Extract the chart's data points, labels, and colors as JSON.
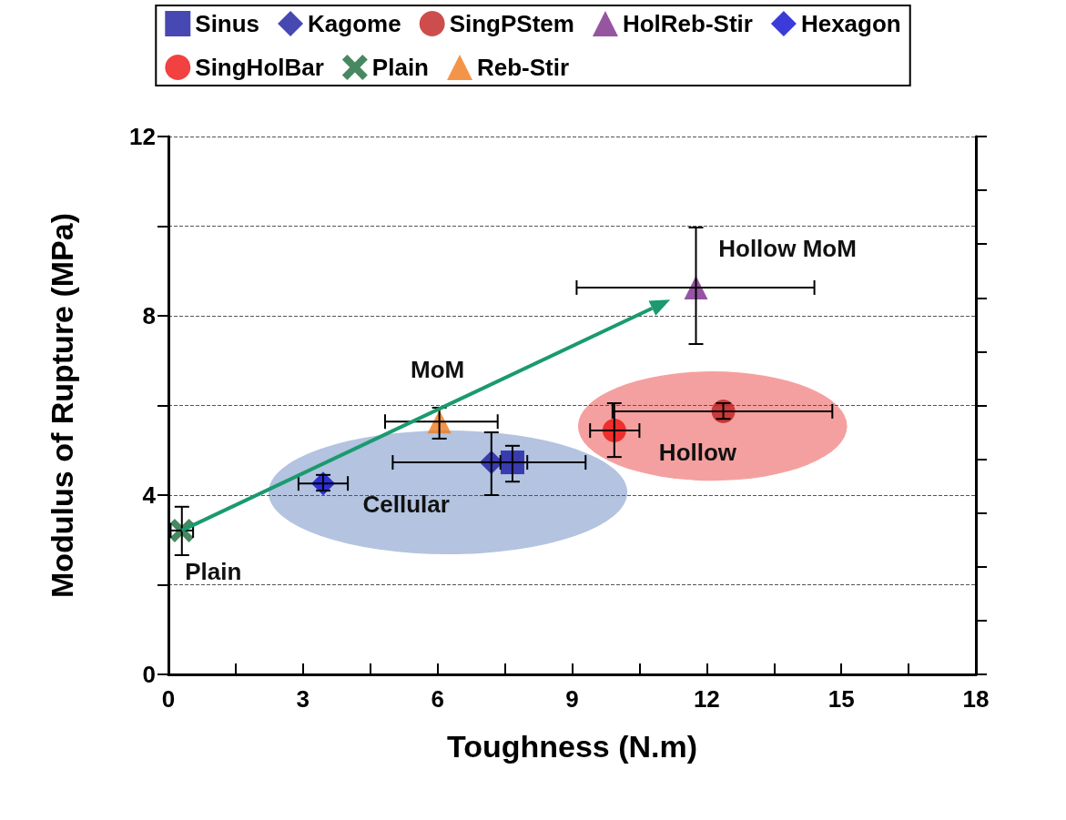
{
  "chart_data": {
    "type": "scatter",
    "xlabel": "Toughness (N.m)",
    "ylabel": "Modulus of Rupture (MPa)",
    "xlim": [
      0,
      18
    ],
    "xticks": [
      0,
      {
        "value": 1.5,
        "label": null
      },
      3,
      {
        "value": 4.5,
        "label": null
      },
      6,
      {
        "value": 7.5,
        "label": null
      },
      9,
      {
        "value": 10.5,
        "label": null
      },
      12,
      {
        "value": 13.5,
        "label": null
      },
      15,
      {
        "value": 16.5,
        "label": null
      },
      18
    ],
    "ylim": [
      0,
      12
    ],
    "yticks": [
      0,
      {
        "value": 2,
        "label": null
      },
      4,
      {
        "value": 6,
        "label": null
      },
      8,
      {
        "value": 10,
        "label": null
      },
      12
    ],
    "grid": "y",
    "legend": "top",
    "series": [
      {
        "name": "Sinus",
        "color": "#1a1aa0",
        "marker": "square",
        "x": [
          7.67
        ],
        "values": [
          4.73
        ],
        "errors": [
          [
            4.3,
            5.1
          ]
        ],
        "xerrors": [
          [
            7.4,
            8.0
          ]
        ]
      },
      {
        "name": "Kagome",
        "color": "#1a1aa0",
        "marker": "diamond",
        "x": [
          7.2
        ],
        "values": [
          4.73
        ],
        "errors": [
          [
            4.0,
            5.4
          ]
        ],
        "xerrors": [
          [
            5.0,
            9.3
          ]
        ]
      },
      {
        "name": "SingPStem",
        "color": "#c02020",
        "marker": "circle",
        "x": [
          12.37
        ],
        "values": [
          5.87
        ],
        "errors": [
          [
            5.7,
            6.05
          ]
        ],
        "xerrors": [
          [
            9.9,
            14.8
          ]
        ]
      },
      {
        "name": "HolReb-Stir",
        "color": "#7a2a8a",
        "marker": "triangle",
        "x": [
          11.76
        ],
        "values": [
          8.63
        ],
        "errors": [
          [
            7.37,
            9.97
          ]
        ],
        "xerrors": [
          [
            9.1,
            14.4
          ]
        ]
      },
      {
        "name": "Hexagon",
        "color": "#0a0ad0",
        "marker": "diamond",
        "x": [
          3.45
        ],
        "values": [
          4.26
        ],
        "errors": [
          [
            4.1,
            4.45
          ]
        ],
        "xerrors": [
          [
            2.9,
            4.0
          ]
        ]
      },
      {
        "name": "SingHolBar",
        "color": "#ee1111",
        "marker": "circle",
        "x": [
          9.94
        ],
        "values": [
          5.44
        ],
        "errors": [
          [
            4.85,
            6.05
          ]
        ],
        "xerrors": [
          [
            9.4,
            10.5
          ]
        ]
      },
      {
        "name": "Plain",
        "color": "#1a6a3a",
        "marker": "cross",
        "x": [
          0.3
        ],
        "values": [
          3.21
        ],
        "errors": [
          [
            2.66,
            3.74
          ]
        ],
        "xerrors": [
          [
            0.05,
            0.55
          ]
        ]
      },
      {
        "name": "Reb-Stir",
        "color": "#f07a1a",
        "marker": "triangle",
        "x": [
          6.04
        ],
        "values": [
          5.64
        ],
        "errors": [
          [
            5.26,
            5.95
          ]
        ],
        "xerrors": [
          [
            4.83,
            7.34
          ]
        ]
      }
    ],
    "annotations": [
      "Plain",
      "Cellular",
      "MoM",
      "Hollow",
      "Hollow MoM"
    ]
  }
}
